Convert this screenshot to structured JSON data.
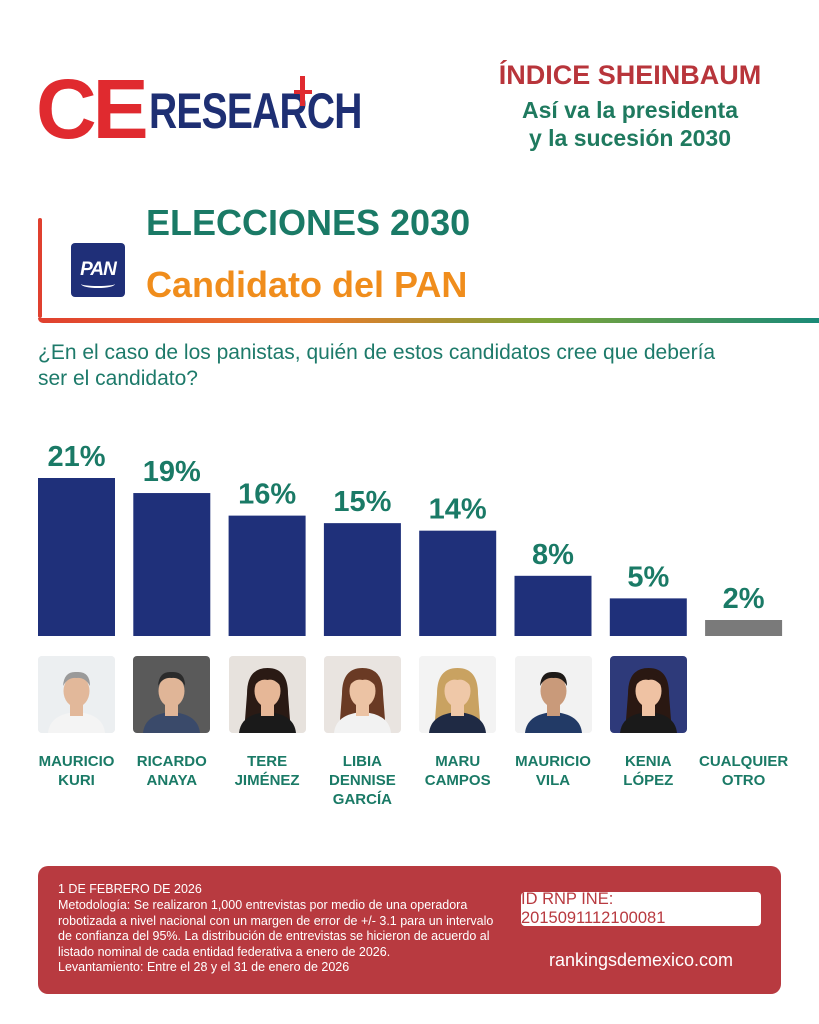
{
  "logo": {
    "ce": "CE",
    "research": "RESEARCH"
  },
  "header": {
    "title": "ÍNDICE SHEINBAUM",
    "subtitle_line1": "Así va la presidenta",
    "subtitle_line2": "y la sucesión 2030"
  },
  "section": {
    "title": "ELECCIONES 2030",
    "subtitle": "Candidato del PAN",
    "party_logo_text": "PAN"
  },
  "question": "¿En el caso de los panistas, quién de estos candidatos cree que debería ser el candidato?",
  "chart_data": {
    "type": "bar",
    "categories": [
      "MAURICIO KURI",
      "RICARDO ANAYA",
      "TERE JIMÉNEZ",
      "LIBIA DENNISE GARCÍA",
      "MARU CAMPOS",
      "MAURICIO VILA",
      "KENIA LÓPEZ",
      "CUALQUIER OTRO"
    ],
    "values": [
      21,
      19,
      16,
      15,
      14,
      8,
      5,
      2
    ],
    "value_labels": [
      "21%",
      "19%",
      "16%",
      "15%",
      "14%",
      "8%",
      "5%",
      "2%"
    ],
    "bar_colors": [
      "#1f307a",
      "#1f307a",
      "#1f307a",
      "#1f307a",
      "#1f307a",
      "#1f307a",
      "#1f307a",
      "#7a7a7a"
    ],
    "ylim": [
      0,
      21
    ],
    "grid": false,
    "legend": "none"
  },
  "candidates": [
    {
      "line1": "MAURICIO",
      "line2": "KURI",
      "line3": "",
      "photo": "portrait-man-gray-hair"
    },
    {
      "line1": "RICARDO",
      "line2": "ANAYA",
      "line3": "",
      "photo": "portrait-man-dark-hair"
    },
    {
      "line1": "TERE",
      "line2": "JIMÉNEZ",
      "line3": "",
      "photo": "portrait-woman-dark-hair"
    },
    {
      "line1": "LIBIA",
      "line2": "DENNISE",
      "line3": "GARCÍA",
      "photo": "portrait-woman-brown-hair"
    },
    {
      "line1": "MARU",
      "line2": "CAMPOS",
      "line3": "",
      "photo": "portrait-woman-blonde-hair"
    },
    {
      "line1": "MAURICIO",
      "line2": "VILA",
      "line3": "",
      "photo": "portrait-man-suit"
    },
    {
      "line1": "KENIA",
      "line2": "LÓPEZ",
      "line3": "",
      "photo": "portrait-woman-long-dark-hair"
    },
    {
      "line1": "CUALQUIER",
      "line2": "OTRO",
      "line3": "",
      "photo": ""
    }
  ],
  "footer": {
    "date": "1 DE FEBRERO DE 2026",
    "methodology": "Metodología: Se realizaron 1,000 entrevistas por medio de una operadora robotizada a nivel nacional con un margen de error de +/- 3.1 para un intervalo de confianza del 95%. La distribución de entrevistas se hicieron de acuerdo al listado nominal de cada entidad federativa a enero de 2026.",
    "fieldwork": "Levantamiento: Entre el 28 y el 31 de enero de 2026",
    "id": "ID RNP INE: 2015091112100081",
    "website": "rankingsdemexico.com"
  }
}
